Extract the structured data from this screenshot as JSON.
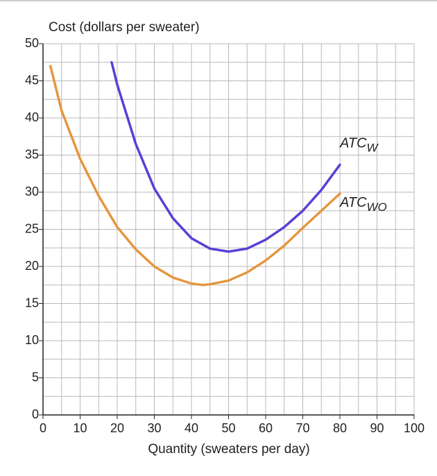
{
  "chart_data": {
    "type": "line",
    "y_axis_title": "Cost (dollars per sweater)",
    "x_axis_title": "Quantity (sweaters per day)",
    "xlim": [
      0,
      100
    ],
    "xticks": [
      0,
      10,
      20,
      30,
      40,
      50,
      60,
      70,
      80,
      90,
      100
    ],
    "ylim": [
      0,
      50
    ],
    "yticks": [
      0,
      5,
      10,
      15,
      20,
      25,
      30,
      35,
      40,
      45,
      50
    ],
    "grid": true,
    "series": [
      {
        "name": "ATC",
        "name_sub": "W",
        "color": "#5b3fd6",
        "x": [
          18.5,
          20,
          25,
          30,
          35,
          40,
          45,
          50,
          55,
          60,
          65,
          70,
          75,
          80
        ],
        "values": [
          47.5,
          44.5,
          36.5,
          30.5,
          26.5,
          23.8,
          22.4,
          22,
          22.4,
          23.6,
          25.3,
          27.5,
          30.3,
          33.7
        ]
      },
      {
        "name": "ATC",
        "name_sub": "WO",
        "color": "#e5963f",
        "x": [
          2,
          5,
          10,
          15,
          20,
          25,
          30,
          35,
          40,
          43,
          45,
          50,
          55,
          60,
          65,
          70,
          75,
          80
        ],
        "values": [
          47,
          41,
          34.5,
          29.5,
          25.3,
          22.3,
          20,
          18.5,
          17.7,
          17.5,
          17.6,
          18.1,
          19.2,
          20.8,
          22.8,
          25.2,
          27.5,
          29.8
        ]
      }
    ]
  }
}
